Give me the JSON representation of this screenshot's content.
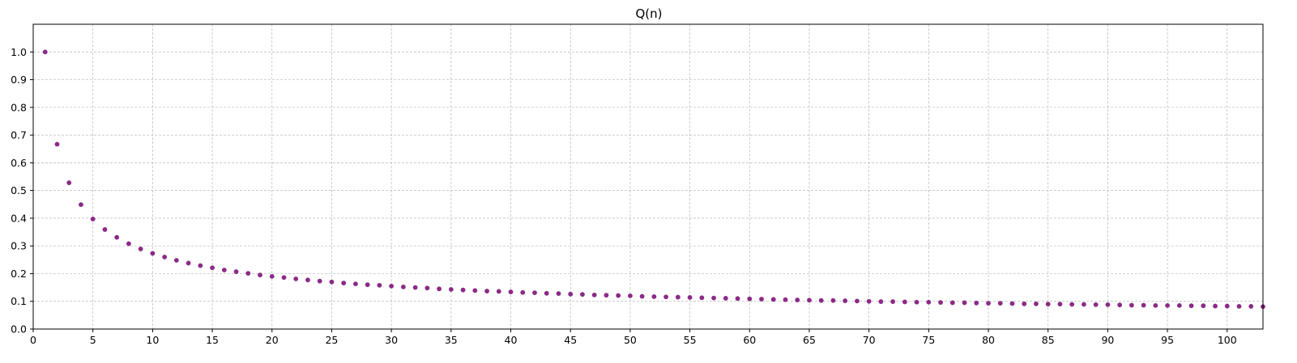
{
  "chart_data": {
    "type": "scatter",
    "title": "Q(n)",
    "xlabel": "",
    "ylabel": "",
    "xlim": [
      0,
      103
    ],
    "ylim": [
      0,
      1.1
    ],
    "xticks": [
      0,
      5,
      10,
      15,
      20,
      25,
      30,
      35,
      40,
      45,
      50,
      55,
      60,
      65,
      70,
      75,
      80,
      85,
      90,
      95,
      100
    ],
    "yticks": [
      0.0,
      0.1,
      0.2,
      0.3,
      0.4,
      0.5,
      0.6,
      0.7,
      0.8,
      0.9,
      1.0
    ],
    "ytick_labels": [
      "0.0",
      "0.1",
      "0.2",
      "0.3",
      "0.4",
      "0.5",
      "0.6",
      "0.7",
      "0.8",
      "0.9",
      "1.0"
    ],
    "grid": true,
    "marker_color": "#8b2a87",
    "series": [
      {
        "x": [
          1,
          2,
          3,
          4,
          5,
          6,
          7,
          8,
          9,
          10,
          11,
          12,
          13,
          14,
          15,
          16,
          17,
          18,
          19,
          20,
          21,
          22,
          23,
          24,
          25,
          26,
          27,
          28,
          29,
          30,
          31,
          32,
          33,
          34,
          35,
          36,
          37,
          38,
          39,
          40,
          41,
          42,
          43,
          44,
          45,
          46,
          47,
          48,
          49,
          50,
          51,
          52,
          53,
          54,
          55,
          56,
          57,
          58,
          59,
          60,
          61,
          62,
          63,
          64,
          65,
          66,
          67,
          68,
          69,
          70,
          71,
          72,
          73,
          74,
          75,
          76,
          77,
          78,
          79,
          80,
          81,
          82,
          83,
          84,
          85,
          86,
          87,
          88,
          89,
          90,
          91,
          92,
          93,
          94,
          95,
          96,
          97,
          98,
          99,
          100,
          101,
          102,
          103
        ],
        "y": [
          1.0,
          0.667,
          0.528,
          0.449,
          0.397,
          0.359,
          0.331,
          0.308,
          0.289,
          0.273,
          0.26,
          0.248,
          0.238,
          0.229,
          0.221,
          0.213,
          0.207,
          0.201,
          0.195,
          0.19,
          0.186,
          0.181,
          0.177,
          0.173,
          0.17,
          0.166,
          0.163,
          0.16,
          0.158,
          0.155,
          0.152,
          0.15,
          0.148,
          0.145,
          0.143,
          0.141,
          0.139,
          0.137,
          0.136,
          0.134,
          0.132,
          0.131,
          0.129,
          0.128,
          0.126,
          0.125,
          0.123,
          0.122,
          0.121,
          0.12,
          0.118,
          0.117,
          0.116,
          0.115,
          0.114,
          0.113,
          0.112,
          0.111,
          0.11,
          0.109,
          0.108,
          0.107,
          0.106,
          0.105,
          0.104,
          0.103,
          0.103,
          0.102,
          0.101,
          0.1,
          0.099,
          0.099,
          0.098,
          0.097,
          0.097,
          0.096,
          0.095,
          0.095,
          0.094,
          0.093,
          0.093,
          0.092,
          0.091,
          0.091,
          0.09,
          0.09,
          0.089,
          0.089,
          0.088,
          0.088,
          0.087,
          0.086,
          0.086,
          0.085,
          0.085,
          0.085,
          0.084,
          0.084,
          0.083,
          0.083,
          0.082,
          0.082,
          0.081
        ]
      }
    ]
  }
}
